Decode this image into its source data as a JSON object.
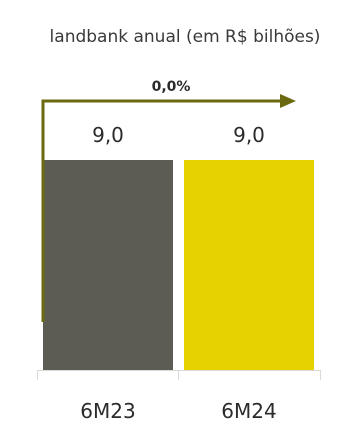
{
  "chart_data": {
    "type": "bar",
    "title": "landbank anual (em R$ bilhões)",
    "categories": [
      "6M23",
      "6M24"
    ],
    "values": [
      9.0,
      9.0
    ],
    "value_labels": [
      "9,0",
      "9,0"
    ],
    "bar_colors": [
      "#5c5c55",
      "#e6d200"
    ],
    "growth_annotation": "0,0%",
    "arrow_color": "#6b6a10",
    "ylim": [
      0,
      9.0
    ],
    "grid": false,
    "legend": "none",
    "xlabel": "",
    "ylabel": ""
  }
}
